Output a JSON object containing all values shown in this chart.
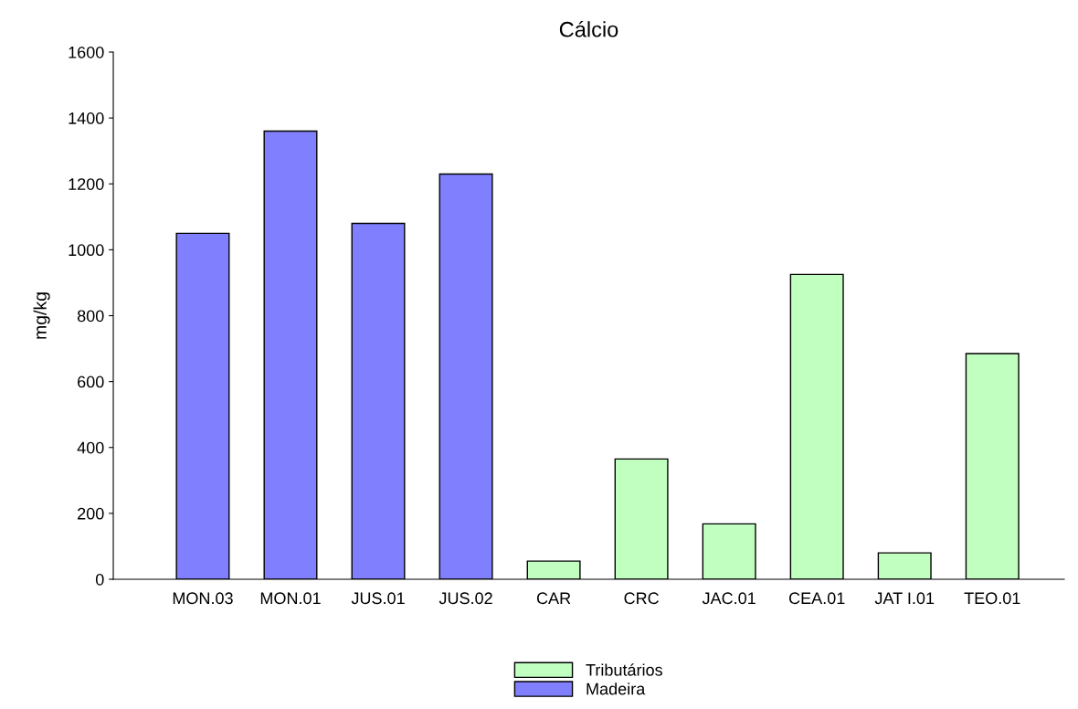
{
  "chart_data": {
    "type": "bar",
    "title": "Cálcio",
    "ylabel": "mg/kg",
    "categories": [
      "MON.03",
      "MON.01",
      "JUS.01",
      "JUS.02",
      "CAR",
      "CRC",
      "JAC.01",
      "CEA.01",
      "JAT I.01",
      "TEO.01"
    ],
    "series": [
      {
        "name": "Tributários",
        "color": "#c0ffc0",
        "values": [
          null,
          null,
          null,
          null,
          55,
          365,
          168,
          925,
          80,
          685
        ]
      },
      {
        "name": "Madeira",
        "color": "#8080ff",
        "values": [
          1050,
          1360,
          1080,
          1230,
          null,
          null,
          null,
          null,
          null,
          null
        ]
      }
    ],
    "ylim": [
      0,
      1600
    ],
    "yticks": [
      0,
      200,
      400,
      600,
      800,
      1000,
      1200,
      1400,
      1600
    ],
    "grid": false,
    "legend": "bottom"
  }
}
